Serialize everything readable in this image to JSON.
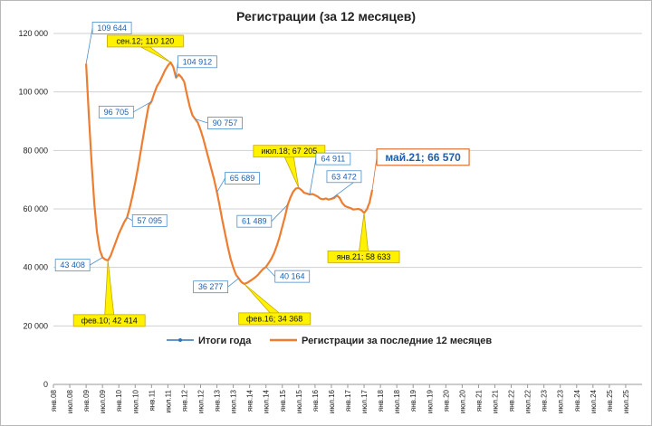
{
  "chart_data": {
    "type": "line",
    "title": "Регистрации (за 12 месяцев)",
    "ylim": [
      0,
      120000
    ],
    "y_ticks": [
      "0",
      "20 000",
      "40 000",
      "60 000",
      "80 000",
      "100 000",
      "120 000"
    ],
    "x_tick_labels": [
      "янв.08",
      "июл.08",
      "янв.09",
      "июл.09",
      "янв.10",
      "июл.10",
      "янв.11",
      "июл.11",
      "янв.12",
      "июл.12",
      "янв.13",
      "июл.13",
      "янв.14",
      "июл.14",
      "янв.15",
      "июл.15",
      "янв.16",
      "июл.16",
      "янв.17",
      "июл.17",
      "янв.18",
      "июл.18",
      "янв.19",
      "июл.19",
      "янв.20",
      "июл.20",
      "янв.21",
      "июл.21",
      "янв.22",
      "июл.22",
      "янв.23",
      "июл.23",
      "янв.24",
      "июл.24",
      "янв.25",
      "июл.25"
    ],
    "grid": "horizontal",
    "legend_position": "bottom",
    "series": [
      {
        "name": "Итоги года",
        "color": "#2e75b6",
        "points": []
      },
      {
        "name": "Регистрации за последние 12 месяцев",
        "color": "#ed7d31",
        "points": [
          [
            12,
            109644
          ],
          [
            13,
            92000
          ],
          [
            14,
            76000
          ],
          [
            15,
            62000
          ],
          [
            16,
            52000
          ],
          [
            17,
            46000
          ],
          [
            18,
            43408
          ],
          [
            19,
            42700
          ],
          [
            20,
            42414
          ],
          [
            21,
            44000
          ],
          [
            22,
            46500
          ],
          [
            23,
            49000
          ],
          [
            24,
            51500
          ],
          [
            25,
            53500
          ],
          [
            26,
            55500
          ],
          [
            27,
            57095
          ],
          [
            28,
            60500
          ],
          [
            29,
            64500
          ],
          [
            30,
            69000
          ],
          [
            31,
            74000
          ],
          [
            32,
            79500
          ],
          [
            33,
            85000
          ],
          [
            34,
            90500
          ],
          [
            35,
            95500
          ],
          [
            36,
            96705
          ],
          [
            37,
            99500
          ],
          [
            38,
            102000
          ],
          [
            39,
            103500
          ],
          [
            40,
            105500
          ],
          [
            41,
            107500
          ],
          [
            42,
            109000
          ],
          [
            43,
            110120
          ],
          [
            44,
            108500
          ],
          [
            45,
            104912
          ],
          [
            46,
            106000
          ],
          [
            47,
            105000
          ],
          [
            48,
            103500
          ],
          [
            49,
            99000
          ],
          [
            50,
            95000
          ],
          [
            51,
            92000
          ],
          [
            52,
            90757
          ],
          [
            53,
            89500
          ],
          [
            54,
            87000
          ],
          [
            55,
            84000
          ],
          [
            56,
            80500
          ],
          [
            57,
            77000
          ],
          [
            58,
            73500
          ],
          [
            59,
            70000
          ],
          [
            60,
            65689
          ],
          [
            61,
            61000
          ],
          [
            62,
            56000
          ],
          [
            63,
            51500
          ],
          [
            64,
            47000
          ],
          [
            65,
            43000
          ],
          [
            66,
            40000
          ],
          [
            67,
            37500
          ],
          [
            68,
            36277
          ],
          [
            69,
            35000
          ],
          [
            70,
            34368
          ],
          [
            71,
            34700
          ],
          [
            72,
            35300
          ],
          [
            73,
            35900
          ],
          [
            74,
            36600
          ],
          [
            75,
            37400
          ],
          [
            76,
            38500
          ],
          [
            77,
            39500
          ],
          [
            78,
            40164
          ],
          [
            79,
            41500
          ],
          [
            80,
            43000
          ],
          [
            81,
            45000
          ],
          [
            82,
            47500
          ],
          [
            83,
            50500
          ],
          [
            84,
            54000
          ],
          [
            85,
            57500
          ],
          [
            86,
            61489
          ],
          [
            87,
            64000
          ],
          [
            88,
            65900
          ],
          [
            89,
            67000
          ],
          [
            90,
            67205
          ],
          [
            91,
            66500
          ],
          [
            92,
            65500
          ],
          [
            93,
            65300
          ],
          [
            94,
            64911
          ],
          [
            95,
            65100
          ],
          [
            96,
            64700
          ],
          [
            97,
            64200
          ],
          [
            98,
            63500
          ],
          [
            99,
            63300
          ],
          [
            100,
            63600
          ],
          [
            101,
            63200
          ],
          [
            102,
            63472
          ],
          [
            103,
            63700
          ],
          [
            104,
            64600
          ],
          [
            105,
            63800
          ],
          [
            106,
            62000
          ],
          [
            107,
            61000
          ],
          [
            108,
            60600
          ],
          [
            109,
            60300
          ],
          [
            110,
            59800
          ],
          [
            111,
            59900
          ],
          [
            112,
            60000
          ],
          [
            113,
            59600
          ],
          [
            114,
            58633
          ],
          [
            115,
            59800
          ],
          [
            116,
            62200
          ],
          [
            117,
            66570
          ]
        ]
      }
    ],
    "annotations": [
      {
        "text": "109 644",
        "month": 12,
        "value": 109644,
        "style": "blue"
      },
      {
        "text": "43 408",
        "month": 18,
        "value": 43408,
        "style": "blue"
      },
      {
        "text": "фев.10; 42 414",
        "month": 20,
        "value": 42414,
        "style": "yellow"
      },
      {
        "text": "57 095",
        "month": 27,
        "value": 57095,
        "style": "blue"
      },
      {
        "text": "96 705",
        "month": 36,
        "value": 96705,
        "style": "blue"
      },
      {
        "text": "сен.12; 110 120",
        "month": 43,
        "value": 110120,
        "style": "yellow"
      },
      {
        "text": "104 912",
        "month": 45,
        "value": 104912,
        "style": "blue"
      },
      {
        "text": "90 757",
        "month": 52,
        "value": 90757,
        "style": "blue"
      },
      {
        "text": "65 689",
        "month": 60,
        "value": 65689,
        "style": "blue"
      },
      {
        "text": "36 277",
        "month": 68,
        "value": 36277,
        "style": "blue"
      },
      {
        "text": "фев.16; 34 368",
        "month": 70,
        "value": 34368,
        "style": "yellow"
      },
      {
        "text": "40 164",
        "month": 78,
        "value": 40164,
        "style": "blue"
      },
      {
        "text": "61 489",
        "month": 86,
        "value": 61489,
        "style": "blue"
      },
      {
        "text": "июл.18; 67 205",
        "month": 90,
        "value": 67205,
        "style": "yellow"
      },
      {
        "text": "64 911",
        "month": 94,
        "value": 64911,
        "style": "blue"
      },
      {
        "text": "63 472",
        "month": 102,
        "value": 63472,
        "style": "blue"
      },
      {
        "text": "янв.21; 58 633",
        "month": 114,
        "value": 58633,
        "style": "yellow"
      },
      {
        "text": "май.21; 66 570",
        "month": 117,
        "value": 66570,
        "style": "big"
      }
    ]
  }
}
